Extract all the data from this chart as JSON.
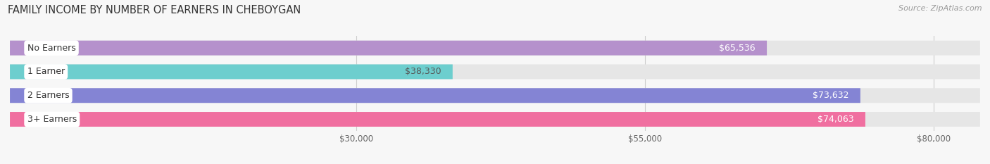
{
  "title": "FAMILY INCOME BY NUMBER OF EARNERS IN CHEBOYGAN",
  "source": "Source: ZipAtlas.com",
  "categories": [
    "No Earners",
    "1 Earner",
    "2 Earners",
    "3+ Earners"
  ],
  "values": [
    65536,
    38330,
    73632,
    74063
  ],
  "labels": [
    "$65,536",
    "$38,330",
    "$73,632",
    "$74,063"
  ],
  "bar_colors": [
    "#b591cc",
    "#6dcece",
    "#8484d4",
    "#f06fa0"
  ],
  "bar_height": 0.62,
  "xmin": 0,
  "xmax": 84000,
  "xticks": [
    30000,
    55000,
    80000
  ],
  "xtick_labels": [
    "$30,000",
    "$55,000",
    "$80,000"
  ],
  "bg_color": "#f7f7f7",
  "bar_bg_color": "#e6e6e6",
  "title_fontsize": 10.5,
  "source_fontsize": 8,
  "label_fontsize": 9,
  "category_fontsize": 9,
  "tick_fontsize": 8.5,
  "label_colors": [
    "white",
    "#555555",
    "white",
    "white"
  ]
}
